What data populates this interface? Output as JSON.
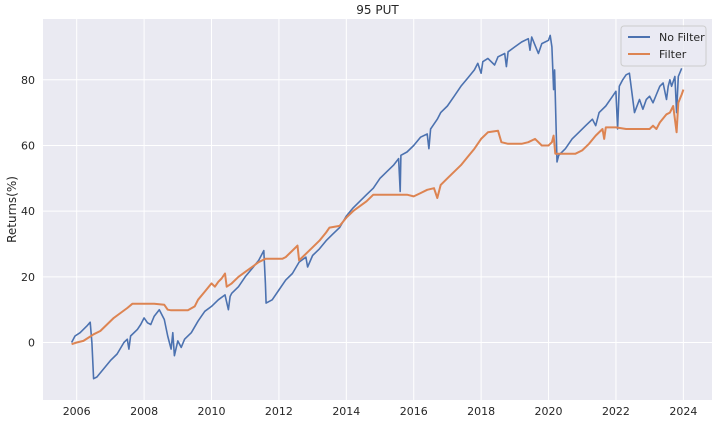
{
  "chart_data": {
    "type": "line",
    "title": "95 PUT",
    "xlabel": "",
    "ylabel": "Returns(%)",
    "xlim": [
      2005.0,
      2024.85
    ],
    "ylim": [
      -17.5,
      98.5
    ],
    "x_ticks": [
      2006,
      2008,
      2010,
      2012,
      2014,
      2016,
      2018,
      2020,
      2022,
      2024
    ],
    "x_tick_labels": [
      "2006",
      "2008",
      "2010",
      "2012",
      "2014",
      "2016",
      "2018",
      "2020",
      "2022",
      "2024"
    ],
    "y_ticks": [
      0,
      20,
      40,
      60,
      80
    ],
    "y_tick_labels": [
      "0",
      "20",
      "40",
      "60",
      "80"
    ],
    "grid": true,
    "legend_position": "top-right",
    "series": [
      {
        "name": "No Filter",
        "color": "#4c72b0",
        "points": [
          [
            2005.85,
            0.0
          ],
          [
            2005.95,
            2.0
          ],
          [
            2006.1,
            3.0
          ],
          [
            2006.3,
            5.0
          ],
          [
            2006.4,
            6.2
          ],
          [
            2006.45,
            0.0
          ],
          [
            2006.5,
            -11.0
          ],
          [
            2006.6,
            -10.5
          ],
          [
            2006.8,
            -8.0
          ],
          [
            2007.0,
            -5.5
          ],
          [
            2007.2,
            -3.5
          ],
          [
            2007.4,
            0.0
          ],
          [
            2007.5,
            1.0
          ],
          [
            2007.55,
            -2.0
          ],
          [
            2007.6,
            2.0
          ],
          [
            2007.8,
            4.0
          ],
          [
            2007.9,
            5.5
          ],
          [
            2008.0,
            7.5
          ],
          [
            2008.1,
            6.0
          ],
          [
            2008.2,
            5.5
          ],
          [
            2008.3,
            8.0
          ],
          [
            2008.45,
            10.0
          ],
          [
            2008.6,
            7.0
          ],
          [
            2008.7,
            2.0
          ],
          [
            2008.8,
            -2.0
          ],
          [
            2008.85,
            3.0
          ],
          [
            2008.9,
            -4.0
          ],
          [
            2009.0,
            0.5
          ],
          [
            2009.1,
            -1.5
          ],
          [
            2009.2,
            1.0
          ],
          [
            2009.4,
            3.0
          ],
          [
            2009.6,
            6.5
          ],
          [
            2009.7,
            8.0
          ],
          [
            2009.8,
            9.5
          ],
          [
            2010.0,
            11.0
          ],
          [
            2010.2,
            13.0
          ],
          [
            2010.4,
            14.5
          ],
          [
            2010.5,
            10.0
          ],
          [
            2010.55,
            14.0
          ],
          [
            2010.6,
            15.0
          ],
          [
            2010.8,
            17.0
          ],
          [
            2011.0,
            20.0
          ],
          [
            2011.2,
            22.5
          ],
          [
            2011.4,
            25.0
          ],
          [
            2011.55,
            28.0
          ],
          [
            2011.6,
            18.0
          ],
          [
            2011.62,
            12.0
          ],
          [
            2011.8,
            13.0
          ],
          [
            2012.0,
            16.0
          ],
          [
            2012.2,
            19.0
          ],
          [
            2012.4,
            21.0
          ],
          [
            2012.6,
            24.5
          ],
          [
            2012.8,
            26.0
          ],
          [
            2012.85,
            23.0
          ],
          [
            2013.0,
            26.5
          ],
          [
            2013.2,
            28.5
          ],
          [
            2013.4,
            31.0
          ],
          [
            2013.6,
            33.0
          ],
          [
            2013.8,
            35.0
          ],
          [
            2014.0,
            38.5
          ],
          [
            2014.2,
            41.0
          ],
          [
            2014.4,
            43.0
          ],
          [
            2014.6,
            45.0
          ],
          [
            2014.8,
            47.0
          ],
          [
            2015.0,
            50.0
          ],
          [
            2015.2,
            52.0
          ],
          [
            2015.4,
            54.0
          ],
          [
            2015.55,
            56.0
          ],
          [
            2015.6,
            46.0
          ],
          [
            2015.62,
            57.0
          ],
          [
            2015.8,
            58.0
          ],
          [
            2016.0,
            60.0
          ],
          [
            2016.2,
            62.5
          ],
          [
            2016.4,
            63.5
          ],
          [
            2016.45,
            59.0
          ],
          [
            2016.5,
            65.0
          ],
          [
            2016.7,
            68.0
          ],
          [
            2016.8,
            70.0
          ],
          [
            2017.0,
            72.0
          ],
          [
            2017.2,
            75.0
          ],
          [
            2017.4,
            78.0
          ],
          [
            2017.6,
            80.5
          ],
          [
            2017.8,
            83.0
          ],
          [
            2017.9,
            85.0
          ],
          [
            2018.0,
            82.0
          ],
          [
            2018.05,
            85.5
          ],
          [
            2018.2,
            86.5
          ],
          [
            2018.4,
            84.5
          ],
          [
            2018.5,
            87.0
          ],
          [
            2018.7,
            88.0
          ],
          [
            2018.75,
            84.0
          ],
          [
            2018.8,
            88.5
          ],
          [
            2019.0,
            90.0
          ],
          [
            2019.2,
            91.5
          ],
          [
            2019.4,
            92.5
          ],
          [
            2019.45,
            89.0
          ],
          [
            2019.5,
            93.0
          ],
          [
            2019.7,
            88.0
          ],
          [
            2019.8,
            91.0
          ],
          [
            2020.0,
            92.0
          ],
          [
            2020.05,
            93.5
          ],
          [
            2020.1,
            90.0
          ],
          [
            2020.15,
            77.0
          ],
          [
            2020.18,
            83.0
          ],
          [
            2020.25,
            55.0
          ],
          [
            2020.3,
            57.0
          ],
          [
            2020.5,
            59.0
          ],
          [
            2020.7,
            62.0
          ],
          [
            2020.9,
            64.0
          ],
          [
            2021.1,
            66.0
          ],
          [
            2021.3,
            68.0
          ],
          [
            2021.4,
            66.0
          ],
          [
            2021.5,
            70.0
          ],
          [
            2021.7,
            72.0
          ],
          [
            2021.9,
            75.0
          ],
          [
            2022.0,
            76.5
          ],
          [
            2022.05,
            65.0
          ],
          [
            2022.1,
            78.0
          ],
          [
            2022.2,
            80.0
          ],
          [
            2022.3,
            81.5
          ],
          [
            2022.4,
            82.0
          ],
          [
            2022.5,
            74.0
          ],
          [
            2022.55,
            70.0
          ],
          [
            2022.7,
            74.0
          ],
          [
            2022.8,
            71.0
          ],
          [
            2022.9,
            74.0
          ],
          [
            2023.0,
            75.0
          ],
          [
            2023.1,
            73.0
          ],
          [
            2023.2,
            75.5
          ],
          [
            2023.3,
            78.0
          ],
          [
            2023.4,
            79.0
          ],
          [
            2023.5,
            74.0
          ],
          [
            2023.55,
            78.0
          ],
          [
            2023.6,
            80.0
          ],
          [
            2023.65,
            78.0
          ],
          [
            2023.75,
            81.0
          ],
          [
            2023.8,
            70.0
          ],
          [
            2023.85,
            81.0
          ],
          [
            2023.95,
            83.5
          ]
        ]
      },
      {
        "name": "Filter",
        "color": "#dd8452",
        "points": [
          [
            2005.85,
            -0.5
          ],
          [
            2006.0,
            0.0
          ],
          [
            2006.2,
            0.5
          ],
          [
            2006.35,
            1.5
          ],
          [
            2006.5,
            2.5
          ],
          [
            2006.7,
            3.5
          ],
          [
            2006.9,
            5.5
          ],
          [
            2007.1,
            7.5
          ],
          [
            2007.3,
            9.0
          ],
          [
            2007.5,
            10.5
          ],
          [
            2007.65,
            11.8
          ],
          [
            2008.0,
            11.8
          ],
          [
            2008.3,
            11.8
          ],
          [
            2008.6,
            11.5
          ],
          [
            2008.7,
            10.0
          ],
          [
            2008.8,
            9.8
          ],
          [
            2009.0,
            9.8
          ],
          [
            2009.3,
            9.8
          ],
          [
            2009.5,
            11.0
          ],
          [
            2009.6,
            13.0
          ],
          [
            2009.8,
            15.5
          ],
          [
            2010.0,
            18.0
          ],
          [
            2010.1,
            17.0
          ],
          [
            2010.2,
            18.5
          ],
          [
            2010.3,
            19.5
          ],
          [
            2010.4,
            21.0
          ],
          [
            2010.45,
            17.0
          ],
          [
            2010.6,
            18.0
          ],
          [
            2010.8,
            20.0
          ],
          [
            2011.0,
            21.5
          ],
          [
            2011.2,
            23.0
          ],
          [
            2011.4,
            24.5
          ],
          [
            2011.6,
            25.5
          ],
          [
            2011.9,
            25.5
          ],
          [
            2012.1,
            25.5
          ],
          [
            2012.2,
            26.0
          ],
          [
            2012.4,
            28.0
          ],
          [
            2012.55,
            29.5
          ],
          [
            2012.6,
            25.0
          ],
          [
            2012.8,
            27.0
          ],
          [
            2013.0,
            29.0
          ],
          [
            2013.2,
            31.0
          ],
          [
            2013.4,
            33.5
          ],
          [
            2013.5,
            35.0
          ],
          [
            2013.8,
            35.5
          ],
          [
            2014.0,
            38.0
          ],
          [
            2014.2,
            40.0
          ],
          [
            2014.4,
            41.5
          ],
          [
            2014.6,
            43.0
          ],
          [
            2014.8,
            45.0
          ],
          [
            2015.3,
            45.0
          ],
          [
            2015.8,
            45.0
          ],
          [
            2016.0,
            44.5
          ],
          [
            2016.2,
            45.5
          ],
          [
            2016.4,
            46.5
          ],
          [
            2016.6,
            47.0
          ],
          [
            2016.7,
            44.0
          ],
          [
            2016.8,
            48.0
          ],
          [
            2017.0,
            50.0
          ],
          [
            2017.2,
            52.0
          ],
          [
            2017.4,
            54.0
          ],
          [
            2017.6,
            56.5
          ],
          [
            2017.8,
            59.0
          ],
          [
            2018.0,
            62.0
          ],
          [
            2018.2,
            64.0
          ],
          [
            2018.5,
            64.5
          ],
          [
            2018.6,
            61.0
          ],
          [
            2018.8,
            60.5
          ],
          [
            2019.2,
            60.5
          ],
          [
            2019.4,
            61.0
          ],
          [
            2019.6,
            62.0
          ],
          [
            2019.8,
            60.0
          ],
          [
            2019.9,
            60.0
          ],
          [
            2020.0,
            60.0
          ],
          [
            2020.1,
            61.0
          ],
          [
            2020.15,
            63.0
          ],
          [
            2020.2,
            57.5
          ],
          [
            2020.5,
            57.5
          ],
          [
            2020.8,
            57.5
          ],
          [
            2021.0,
            58.5
          ],
          [
            2021.2,
            60.5
          ],
          [
            2021.4,
            63.0
          ],
          [
            2021.6,
            65.0
          ],
          [
            2021.65,
            62.0
          ],
          [
            2021.7,
            65.5
          ],
          [
            2022.0,
            65.5
          ],
          [
            2022.3,
            65.0
          ],
          [
            2022.6,
            65.0
          ],
          [
            2023.0,
            65.0
          ],
          [
            2023.1,
            66.0
          ],
          [
            2023.2,
            65.0
          ],
          [
            2023.3,
            67.0
          ],
          [
            2023.5,
            69.5
          ],
          [
            2023.6,
            70.0
          ],
          [
            2023.7,
            72.0
          ],
          [
            2023.8,
            64.0
          ],
          [
            2023.85,
            73.0
          ],
          [
            2023.95,
            75.5
          ],
          [
            2024.0,
            77.0
          ]
        ]
      }
    ]
  }
}
